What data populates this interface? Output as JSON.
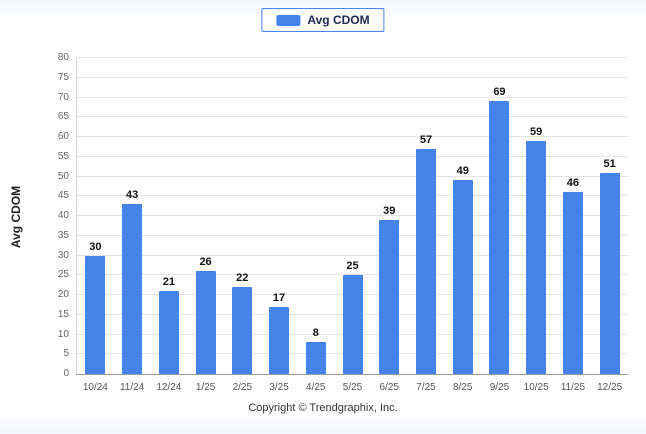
{
  "legend": {
    "label": "Avg CDOM"
  },
  "ylabel": "Avg CDOM",
  "footer": "Copyright © Trendgraphix, Inc.",
  "colors": {
    "bar": "#4483ea",
    "legend_border": "#4a86e8",
    "gridline": "#e3e3e3",
    "axis": "#999999"
  },
  "chart_data": {
    "type": "bar",
    "title": "",
    "xlabel": "",
    "ylabel": "Avg CDOM",
    "categories": [
      "10/24",
      "11/24",
      "12/24",
      "1/25",
      "2/25",
      "3/25",
      "4/25",
      "5/25",
      "6/25",
      "7/25",
      "8/25",
      "9/25",
      "10/25",
      "11/25",
      "12/25"
    ],
    "values": [
      30,
      43,
      21,
      26,
      22,
      17,
      8,
      25,
      39,
      57,
      49,
      69,
      59,
      46,
      51
    ],
    "ylim": [
      0,
      80
    ],
    "ytick_step": 5,
    "grid": true,
    "legend_entries": [
      "Avg CDOM"
    ],
    "legend_position": "top",
    "value_labels": true
  }
}
